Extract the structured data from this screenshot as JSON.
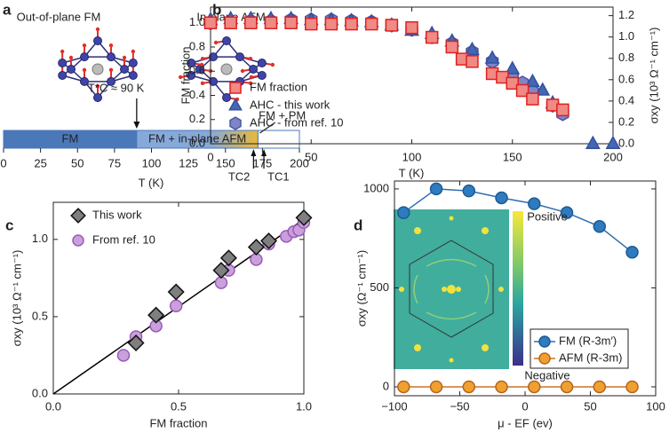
{
  "chart_data": [
    {
      "type": "phase",
      "label": "a",
      "structures": [
        {
          "name": "Out-of-plane FM",
          "color": "#3d6fae"
        },
        {
          "name": "In-plane AFM",
          "color": "#d4a03a"
        }
      ],
      "phases": [
        {
          "name": "FM",
          "start": 0,
          "end": 90,
          "color": "#4a78b8"
        },
        {
          "name": "FM + in-plane AFM",
          "start": 90,
          "end": 172,
          "color": "#86a9da",
          "color_end": "#e8b93a"
        },
        {
          "name": "FM + PM",
          "start": 172,
          "end": 200,
          "color": "#ffffff"
        }
      ],
      "markers": [
        {
          "label": "T*C ≈ 90 K",
          "value": 90
        },
        {
          "label": "TC2",
          "value": 169
        },
        {
          "label": "TC1",
          "value": 176
        }
      ],
      "xlim": [
        0,
        200
      ],
      "xticks": [
        0,
        25,
        50,
        75,
        100,
        125,
        150,
        175,
        200
      ],
      "xlabel": "T (K)"
    },
    {
      "type": "scatter",
      "label": "b",
      "xlabel": "T (K)",
      "ylabel": "FM fraction",
      "y2label": "σxy (10³ Ω⁻¹ cm⁻¹)",
      "ylabel_color": "#e03030",
      "y2label_color": "#4b5aa8",
      "xlim": [
        0,
        200
      ],
      "xticks": [
        0,
        50,
        100,
        150,
        200
      ],
      "ylim": [
        0,
        1.13
      ],
      "yticks": [
        {
          "value": 0,
          "label": "0.0"
        },
        0.2,
        0.4,
        0.6,
        0.8,
        {
          "value": 1,
          "label": "1.0"
        }
      ],
      "y2lim": [
        0,
        1.28
      ],
      "y2ticks": [
        {
          "value": 0,
          "label": "0.0"
        },
        0.2,
        0.4,
        0.6,
        0.8,
        {
          "value": 1,
          "label": "1.0"
        },
        1.2
      ],
      "series": [
        {
          "name": "FM fraction",
          "marker": "square",
          "color": "#f08a84",
          "edgecolor": "#e02020",
          "x": [
            0,
            10,
            20,
            30,
            40,
            50,
            60,
            70,
            80,
            90,
            100,
            110,
            120,
            125,
            130,
            140,
            145,
            150,
            155,
            160,
            170,
            175
          ],
          "values": [
            1.0,
            1.0,
            1.0,
            1.0,
            1.0,
            0.99,
            0.99,
            0.99,
            0.99,
            0.98,
            0.96,
            0.88,
            0.8,
            0.7,
            0.68,
            0.58,
            0.55,
            0.5,
            0.44,
            0.37,
            0.32,
            0.28
          ]
        },
        {
          "name": "AHC - this work",
          "marker": "triangle",
          "color": "#4566b5",
          "edgecolor": "#34509a",
          "axis": "y2",
          "x": [
            0,
            10,
            20,
            30,
            40,
            50,
            60,
            70,
            80,
            90,
            100,
            110,
            120,
            130,
            140,
            150,
            160,
            165,
            170,
            190,
            200
          ],
          "values": [
            1.16,
            1.17,
            1.17,
            1.17,
            1.17,
            1.16,
            1.16,
            1.15,
            1.14,
            1.11,
            1.06,
            1.03,
            0.96,
            0.88,
            0.8,
            0.7,
            0.58,
            0.5,
            0.38,
            0,
            0
          ]
        },
        {
          "name": "AHC - from ref. 10",
          "marker": "hexagon",
          "color": "#7f86c7",
          "edgecolor": "#4b55a0",
          "axis": "y2",
          "x": [
            0,
            10,
            20,
            30,
            40,
            50,
            60,
            70,
            80,
            90,
            100,
            110,
            120,
            130,
            140,
            150,
            155,
            160,
            170,
            175
          ],
          "values": [
            1.13,
            1.14,
            1.15,
            1.15,
            1.16,
            1.16,
            1.16,
            1.15,
            1.14,
            1.11,
            1.07,
            1.0,
            0.94,
            0.86,
            0.77,
            0.64,
            0.57,
            0.49,
            0.36,
            0.28
          ]
        }
      ]
    },
    {
      "type": "scatter",
      "label": "c",
      "xlabel": "FM fraction",
      "ylabel": "σxy (10³ Ω⁻¹ cm⁻¹)",
      "xlim": [
        0,
        1
      ],
      "xticks": [
        {
          "value": 0,
          "label": "0.0"
        },
        0.5,
        {
          "value": 1,
          "label": "1.0"
        }
      ],
      "ylim": [
        0,
        1.24
      ],
      "yticks": [
        {
          "value": 0,
          "label": "0.0"
        },
        0.5,
        {
          "value": 1,
          "label": "1.0"
        }
      ],
      "fit": {
        "x": [
          0,
          1
        ],
        "values": [
          0,
          1.13
        ],
        "color": "#000000"
      },
      "series": [
        {
          "name": "This work",
          "marker": "diamond",
          "color": "#7f7f7f",
          "edgecolor": "#111111",
          "x": [
            0.33,
            0.41,
            0.49,
            0.67,
            0.7,
            0.81,
            0.86,
            1.0
          ],
          "values": [
            0.33,
            0.51,
            0.66,
            0.8,
            0.88,
            0.95,
            0.99,
            1.14
          ]
        },
        {
          "name": "From ref. 10",
          "marker": "circle",
          "color": "#c9a0dc",
          "edgecolor": "#9a5bb5",
          "x": [
            0.28,
            0.33,
            0.41,
            0.49,
            0.67,
            0.7,
            0.81,
            0.86,
            0.93,
            0.96,
            0.98,
            1.0
          ],
          "values": [
            0.25,
            0.37,
            0.44,
            0.57,
            0.72,
            0.8,
            0.87,
            0.97,
            1.02,
            1.05,
            1.06,
            1.11
          ]
        }
      ]
    },
    {
      "type": "line",
      "label": "d",
      "xlabel": "μ - EF (ev)",
      "ylabel": "σxy (Ω⁻¹ cm⁻¹)",
      "xlim": [
        -100,
        100
      ],
      "xticks": [
        {
          "value": -100,
          "label": "−100"
        },
        {
          "value": -50,
          "label": "−50"
        },
        0,
        50,
        100
      ],
      "ylim": [
        -45,
        1040
      ],
      "yticks": [
        0,
        500,
        1000
      ],
      "inset": {
        "colorbar_labels": [
          "Positive",
          "Negative"
        ]
      },
      "series": [
        {
          "name": "FM (R-3m′)",
          "marker": "circle",
          "color": "#2e7bbf",
          "edgecolor": "#1d5a94",
          "line_color": "#2e6fae",
          "x": [
            -93,
            -68,
            -43,
            -18,
            7,
            32,
            57,
            82
          ],
          "values": [
            880,
            1000,
            990,
            955,
            925,
            880,
            810,
            680
          ]
        },
        {
          "name": "AFM (R-3m)",
          "marker": "circle",
          "color": "#f0a030",
          "edgecolor": "#b5651d",
          "line_color": "#c8732a",
          "x": [
            -93,
            -68,
            -43,
            -18,
            7,
            32,
            57,
            82
          ],
          "values": [
            0,
            0,
            0,
            0,
            0,
            0,
            0,
            0
          ]
        }
      ]
    }
  ]
}
